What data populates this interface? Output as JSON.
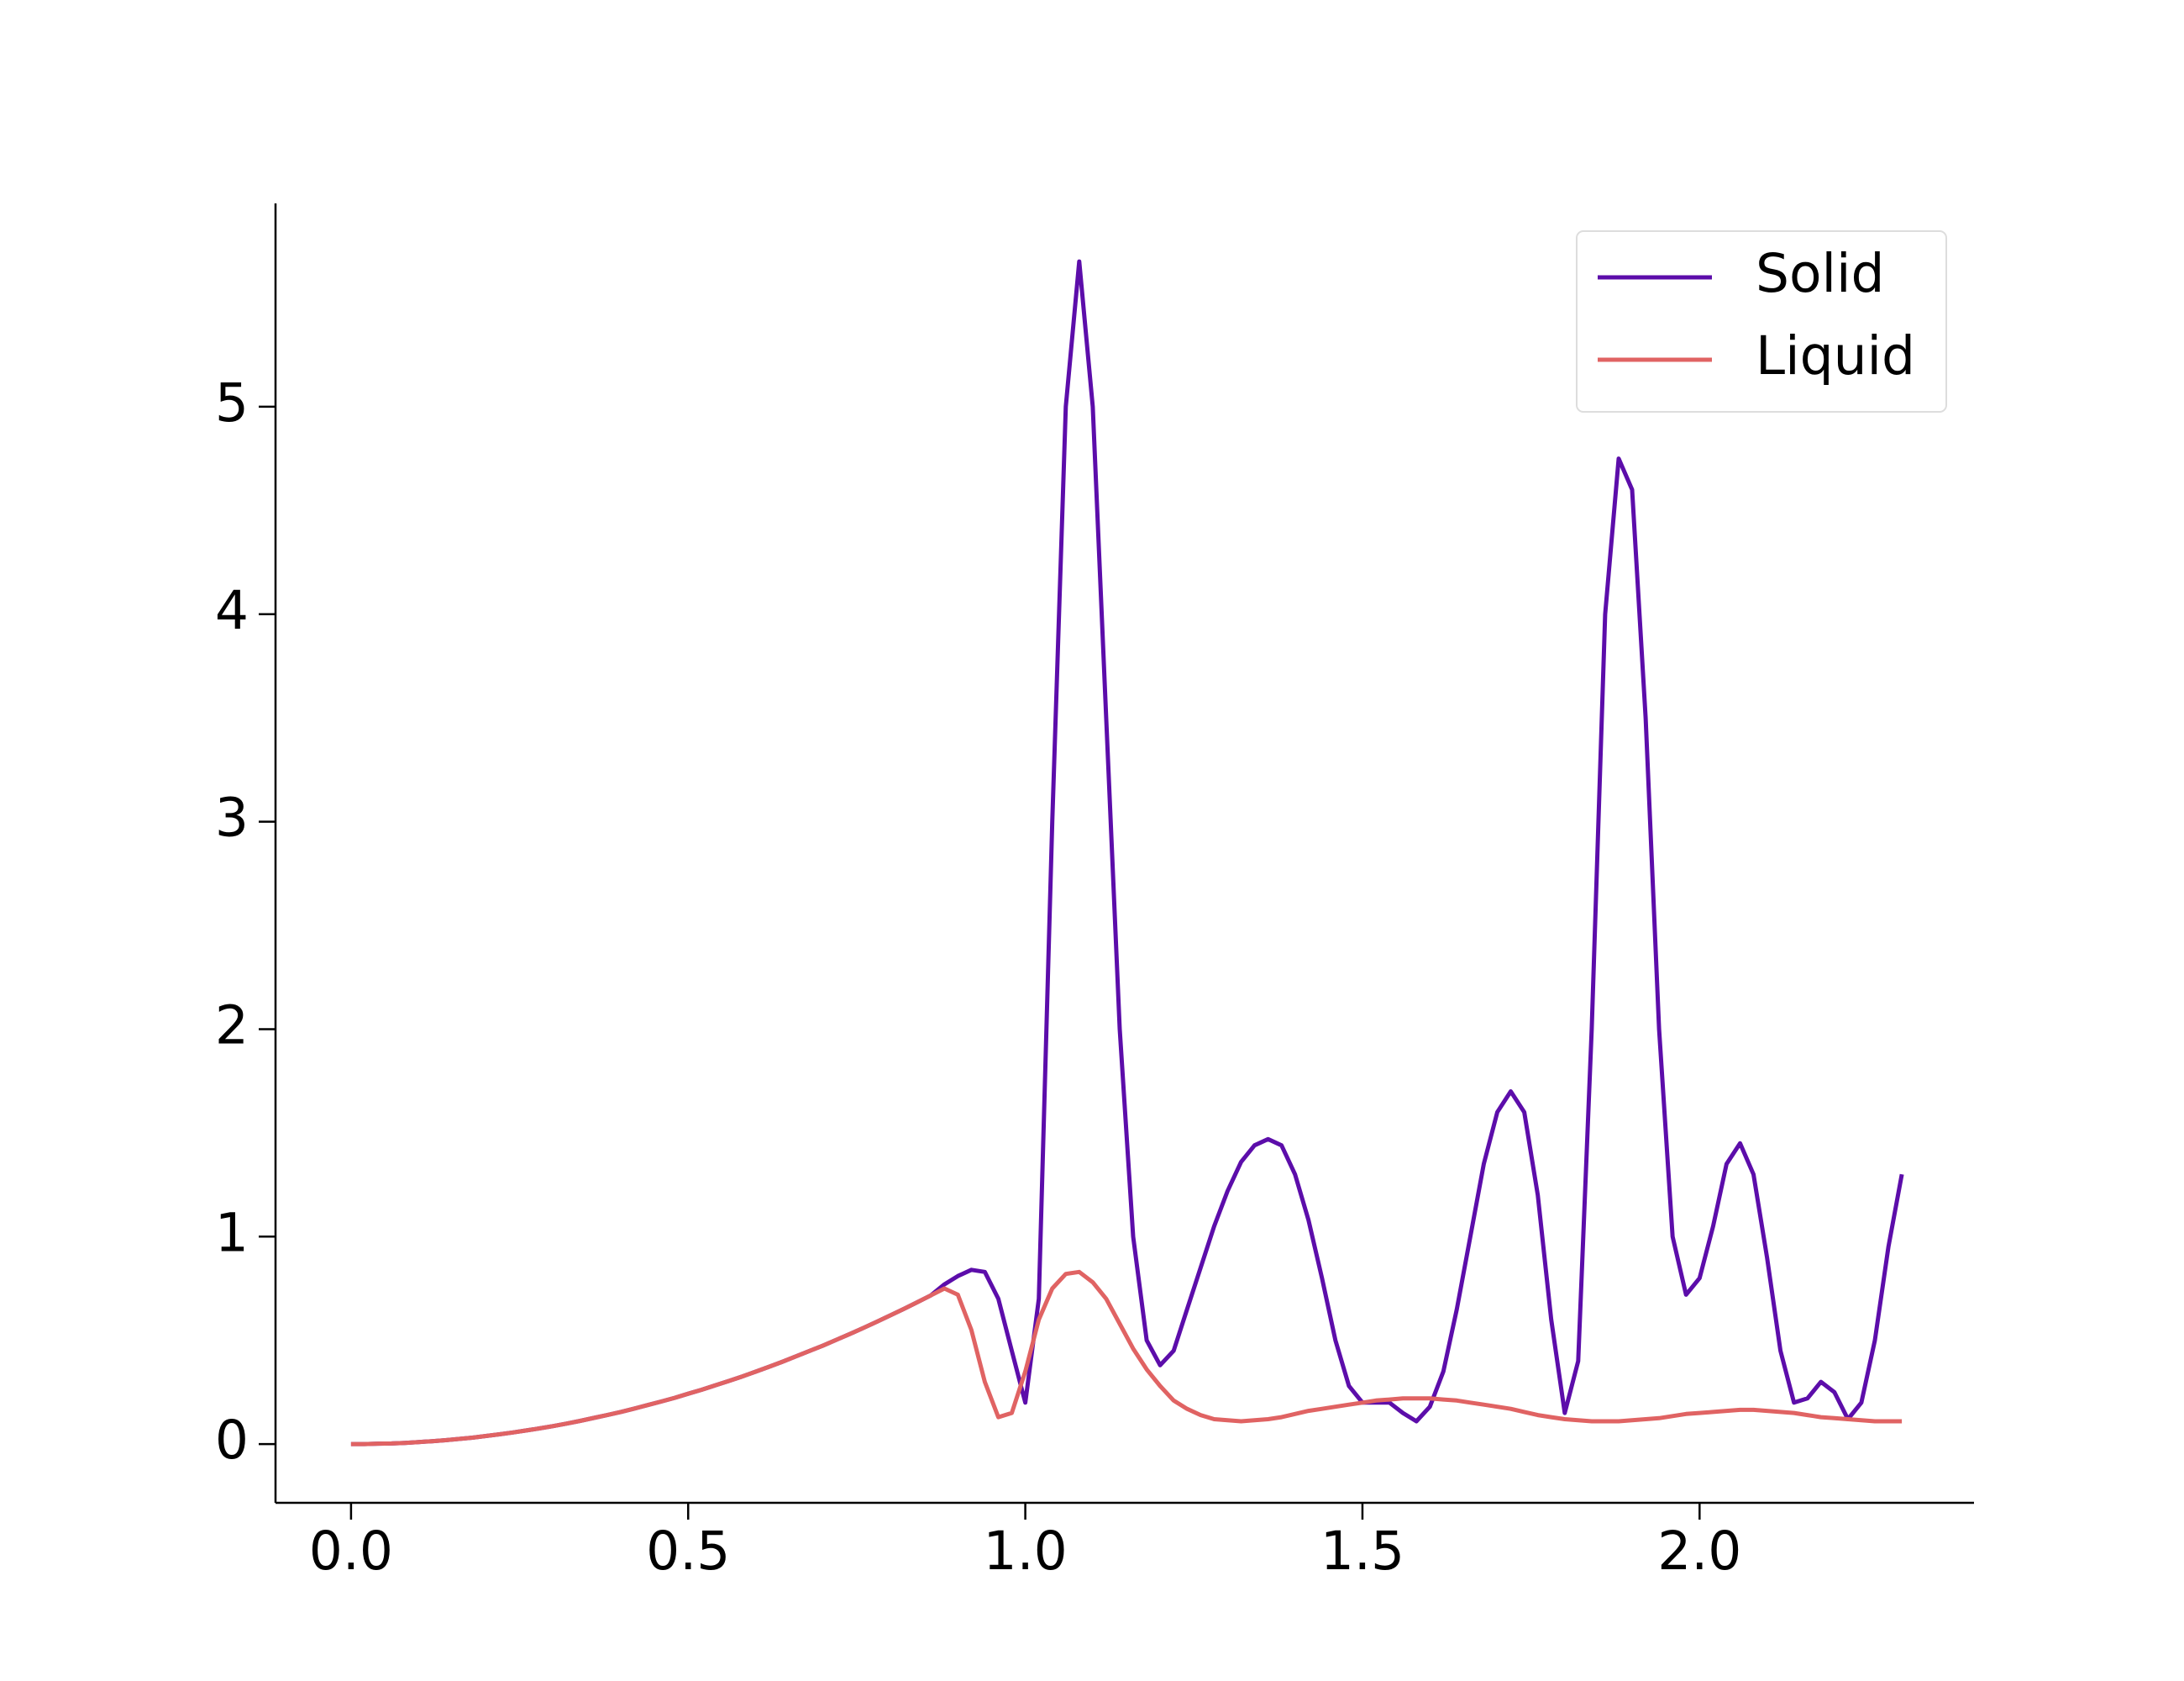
{
  "chart_data": {
    "type": "line",
    "x": [
      0,
      0.02,
      0.04,
      0.06,
      0.08,
      0.1,
      0.12,
      0.14,
      0.16,
      0.18,
      0.2,
      0.22,
      0.24,
      0.26,
      0.28,
      0.3,
      0.32,
      0.34,
      0.36,
      0.38,
      0.4,
      0.42,
      0.44,
      0.46,
      0.48,
      0.5,
      0.52,
      0.54,
      0.56,
      0.58,
      0.6,
      0.62,
      0.64,
      0.66,
      0.68,
      0.7,
      0.72,
      0.74,
      0.76,
      0.78,
      0.8,
      0.82,
      0.84,
      0.86,
      0.88,
      0.9,
      0.92,
      0.94,
      0.96,
      0.98,
      1.0,
      1.02,
      1.04,
      1.06,
      1.08,
      1.1,
      1.12,
      1.14,
      1.16,
      1.18,
      1.2,
      1.22,
      1.24,
      1.26,
      1.28,
      1.3,
      1.32,
      1.34,
      1.36,
      1.38,
      1.4,
      1.42,
      1.44,
      1.46,
      1.48,
      1.5,
      1.52,
      1.54,
      1.56,
      1.58,
      1.6,
      1.62,
      1.64,
      1.66,
      1.68,
      1.7,
      1.72,
      1.74,
      1.76,
      1.78,
      1.8,
      1.82,
      1.84,
      1.86,
      1.88,
      1.9,
      1.92,
      1.94,
      1.96,
      1.98,
      2.0,
      2.02,
      2.04,
      2.06,
      2.08,
      2.1,
      2.12,
      2.14,
      2.16,
      2.18,
      2.2,
      2.22,
      2.24,
      2.26,
      2.28,
      2.3
    ],
    "series": [
      {
        "name": "Solid",
        "color": "#5c0daa",
        "values": [
          0,
          0,
          0.002,
          0.003,
          0.006,
          0.01,
          0.014,
          0.019,
          0.025,
          0.031,
          0.039,
          0.047,
          0.056,
          0.066,
          0.076,
          0.087,
          0.099,
          0.112,
          0.126,
          0.14,
          0.155,
          0.171,
          0.188,
          0.205,
          0.223,
          0.243,
          0.262,
          0.283,
          0.304,
          0.326,
          0.349,
          0.373,
          0.397,
          0.423,
          0.449,
          0.475,
          0.503,
          0.531,
          0.56,
          0.59,
          0.621,
          0.652,
          0.684,
          0.717,
          0.77,
          0.81,
          0.84,
          0.83,
          0.7,
          0.45,
          0.2,
          0.7,
          3.0,
          5.0,
          5.7,
          5.0,
          3.5,
          2.0,
          1.0,
          0.5,
          0.38,
          0.45,
          0.65,
          0.85,
          1.05,
          1.22,
          1.36,
          1.44,
          1.47,
          1.44,
          1.3,
          1.08,
          0.8,
          0.5,
          0.28,
          0.2,
          0.2,
          0.2,
          0.15,
          0.11,
          0.18,
          0.35,
          0.65,
          1.0,
          1.35,
          1.6,
          1.7,
          1.6,
          1.2,
          0.6,
          0.15,
          0.4,
          2.0,
          4.0,
          4.75,
          4.6,
          3.5,
          2.0,
          1.0,
          0.72,
          0.8,
          1.05,
          1.35,
          1.45,
          1.3,
          0.9,
          0.45,
          0.2,
          0.22,
          0.3,
          0.25,
          0.12,
          0.2,
          0.5,
          0.95,
          1.3
        ]
      },
      {
        "name": "Liquid",
        "color": "#e06363",
        "values": [
          0,
          0,
          0.002,
          0.003,
          0.006,
          0.01,
          0.014,
          0.019,
          0.025,
          0.031,
          0.039,
          0.047,
          0.056,
          0.066,
          0.076,
          0.087,
          0.099,
          0.112,
          0.126,
          0.14,
          0.155,
          0.171,
          0.188,
          0.205,
          0.223,
          0.243,
          0.262,
          0.283,
          0.304,
          0.326,
          0.349,
          0.373,
          0.397,
          0.423,
          0.449,
          0.475,
          0.503,
          0.531,
          0.56,
          0.59,
          0.621,
          0.652,
          0.684,
          0.717,
          0.75,
          0.72,
          0.55,
          0.3,
          0.13,
          0.15,
          0.35,
          0.6,
          0.75,
          0.82,
          0.83,
          0.78,
          0.7,
          0.58,
          0.46,
          0.36,
          0.28,
          0.21,
          0.17,
          0.14,
          0.12,
          0.115,
          0.11,
          0.115,
          0.12,
          0.13,
          0.145,
          0.16,
          0.17,
          0.18,
          0.19,
          0.2,
          0.21,
          0.215,
          0.22,
          0.22,
          0.22,
          0.215,
          0.21,
          0.2,
          0.19,
          0.18,
          0.17,
          0.155,
          0.14,
          0.13,
          0.12,
          0.115,
          0.11,
          0.11,
          0.11,
          0.115,
          0.12,
          0.125,
          0.135,
          0.145,
          0.15,
          0.155,
          0.16,
          0.165,
          0.165,
          0.16,
          0.155,
          0.15,
          0.14,
          0.13,
          0.125,
          0.12,
          0.115,
          0.11,
          0.11,
          0.11
        ]
      }
    ],
    "xlim": [
      -0.112,
      2.407
    ],
    "ylim": [
      -0.283,
      5.98
    ],
    "xticks": [
      {
        "value": 0,
        "label": "0.0"
      },
      0.5,
      {
        "value": 1,
        "label": "1.0"
      },
      1.5,
      {
        "value": 2,
        "label": "2.0"
      }
    ],
    "yticks": [
      0,
      1,
      2,
      3,
      4,
      5
    ],
    "legend": "upper right",
    "grid": false
  }
}
